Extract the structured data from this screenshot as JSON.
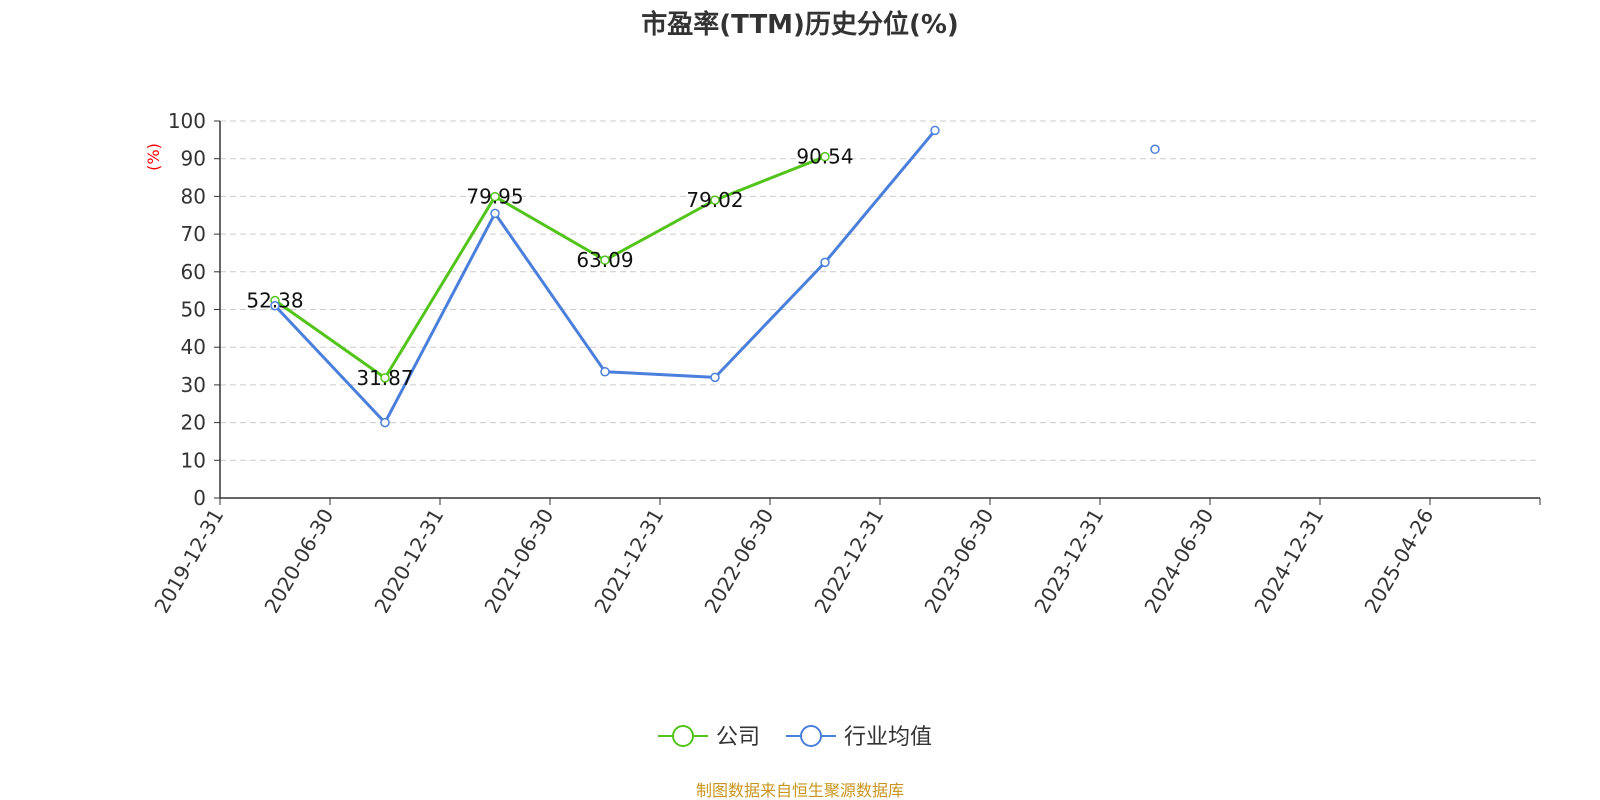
{
  "chart_data": {
    "type": "line",
    "title": "市盈率(TTM)历史分位(%)",
    "ylabel": "(%)",
    "xlabel": "",
    "ylim": [
      0,
      100
    ],
    "yticks": [
      0,
      10,
      20,
      30,
      40,
      50,
      60,
      70,
      80,
      90,
      100
    ],
    "grid": true,
    "legend_position": "bottom-center",
    "categories": [
      "2019-12-31",
      "2020-06-30",
      "2020-12-31",
      "2021-06-30",
      "2021-12-31",
      "2022-06-30",
      "2022-12-31",
      "2023-06-30",
      "2023-12-31",
      "2024-06-30",
      "2024-12-31",
      "2025-04-26"
    ],
    "series": [
      {
        "name": "公司",
        "color": "#52c41a",
        "x": [
          "2019-12-31",
          "2020-06-30",
          "2020-12-31",
          "2021-06-30",
          "2021-12-31",
          "2022-06-30"
        ],
        "values": [
          52.38,
          31.87,
          79.95,
          63.09,
          79.02,
          90.54
        ],
        "labels": [
          "52.38",
          "31.87",
          "79.95",
          "63.09",
          "79.02",
          "90.54"
        ]
      },
      {
        "name": "行业均值",
        "color": "#4a7fdc",
        "x": [
          "2019-12-31",
          "2020-06-30",
          "2020-12-31",
          "2021-06-30",
          "2021-12-31",
          "2022-06-30",
          "2022-12-31",
          "2023-12-31"
        ],
        "values": [
          51,
          20,
          75.5,
          33.5,
          32,
          62.5,
          97.5,
          92.5
        ],
        "connected": [
          true,
          true,
          true,
          true,
          true,
          true,
          true,
          false
        ]
      }
    ]
  },
  "legend": {
    "items": [
      {
        "label": "公司",
        "color": "#52c41a"
      },
      {
        "label": "行业均值",
        "color": "#4a7fdc"
      }
    ]
  },
  "source": {
    "text": "制图数据来自恒生聚源数据库",
    "color": "#c8961e"
  }
}
